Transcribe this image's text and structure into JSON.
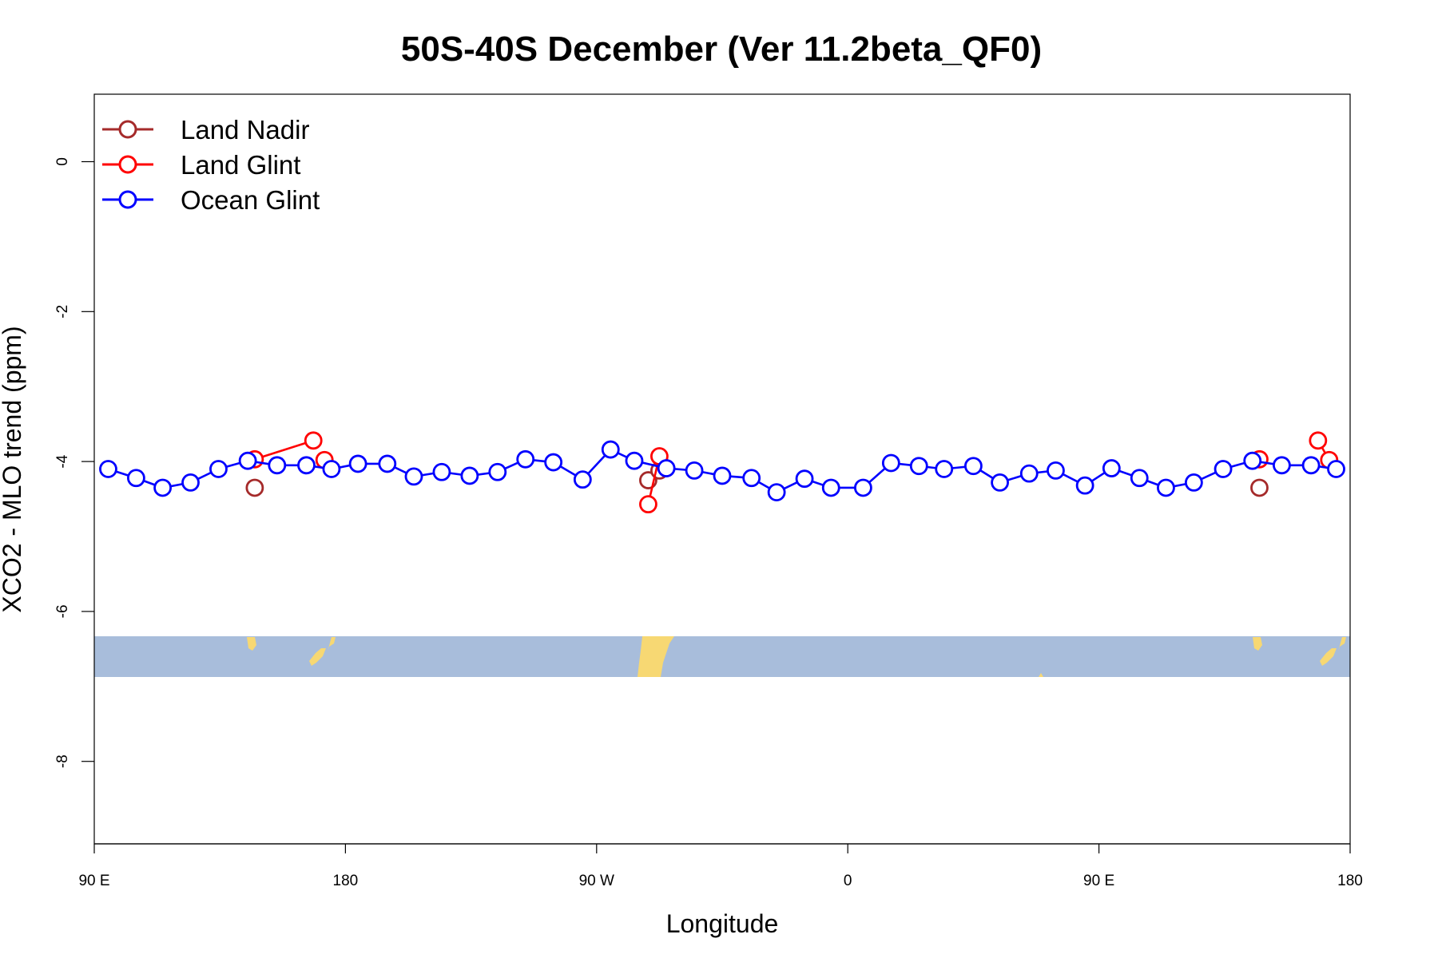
{
  "chart_data": {
    "type": "line",
    "title": "50S-40S December (Ver 11.2beta_QF0)",
    "xlabel": "Longitude",
    "ylabel": "XCO2 - MLO trend (ppm)",
    "x_axis": {
      "range": [
        0,
        450
      ],
      "ticks": [
        {
          "value": 0,
          "label": "90 E"
        },
        {
          "value": 90,
          "label": "180"
        },
        {
          "value": 180,
          "label": "90 W"
        },
        {
          "value": 270,
          "label": "0"
        },
        {
          "value": 360,
          "label": "90 E"
        },
        {
          "value": 450,
          "label": "180"
        }
      ]
    },
    "y_axis": {
      "range": [
        -9.1,
        0.9
      ],
      "ticks": [
        {
          "value": 0,
          "label": "0"
        },
        {
          "value": -2,
          "label": "-2"
        },
        {
          "value": -4,
          "label": "-4"
        },
        {
          "value": -6,
          "label": "-6"
        },
        {
          "value": -8,
          "label": "-8"
        }
      ]
    },
    "legend": {
      "placement": "top-left",
      "entries": [
        {
          "name": "Land Nadir",
          "color": "#a52a2a"
        },
        {
          "name": "Land Glint",
          "color": "#ff0000"
        },
        {
          "name": "Ocean Glint",
          "color": "#0000ff"
        }
      ]
    },
    "series": [
      {
        "name": "Land Nadir",
        "color": "#a52a2a",
        "segments": [
          [
            [
              57.5,
              -4.35
            ]
          ],
          [
            [
              198.5,
              -4.25
            ],
            [
              202.5,
              -4.12
            ]
          ],
          [
            [
              417.5,
              -4.35
            ]
          ]
        ]
      },
      {
        "name": "Land Glint",
        "color": "#ff0000",
        "segments": [
          [
            [
              57.5,
              -3.97
            ],
            [
              78.5,
              -3.72
            ]
          ],
          [
            [
              82.5,
              -3.98
            ]
          ],
          [
            [
              198.5,
              -4.57
            ],
            [
              202.5,
              -3.93
            ]
          ],
          [
            [
              417.5,
              -3.97
            ]
          ],
          [
            [
              438.5,
              -3.72
            ],
            [
              442.5,
              -3.98
            ]
          ]
        ]
      },
      {
        "name": "Ocean Glint",
        "color": "#0000ff",
        "segments": [
          [
            [
              5,
              -4.1
            ],
            [
              15,
              -4.22
            ],
            [
              24.5,
              -4.35
            ],
            [
              34.5,
              -4.28
            ],
            [
              44.5,
              -4.1
            ],
            [
              55,
              -3.99
            ],
            [
              65.5,
              -4.05
            ],
            [
              76,
              -4.05
            ],
            [
              85,
              -4.1
            ],
            [
              94.5,
              -4.03
            ],
            [
              105,
              -4.03
            ],
            [
              114.5,
              -4.2
            ],
            [
              124.5,
              -4.14
            ],
            [
              134.5,
              -4.19
            ],
            [
              144.5,
              -4.14
            ],
            [
              154.5,
              -3.97
            ],
            [
              164.5,
              -4.01
            ],
            [
              175,
              -4.24
            ],
            [
              185,
              -3.84
            ],
            [
              193.5,
              -3.99
            ],
            [
              205,
              -4.09
            ],
            [
              215,
              -4.12
            ],
            [
              225,
              -4.19
            ],
            [
              235.5,
              -4.22
            ],
            [
              244.5,
              -4.41
            ],
            [
              254.5,
              -4.23
            ],
            [
              264,
              -4.35
            ],
            [
              275.5,
              -4.35
            ],
            [
              285.5,
              -4.02
            ],
            [
              295.5,
              -4.06
            ],
            [
              304.5,
              -4.1
            ],
            [
              315,
              -4.06
            ],
            [
              324.5,
              -4.28
            ],
            [
              335,
              -4.16
            ],
            [
              344.5,
              -4.12
            ],
            [
              355,
              -4.32
            ],
            [
              364.5,
              -4.09
            ],
            [
              374.5,
              -4.22
            ],
            [
              384,
              -4.35
            ],
            [
              394,
              -4.28
            ],
            [
              404.5,
              -4.1
            ],
            [
              415,
              -3.99
            ],
            [
              425.5,
              -4.05
            ],
            [
              436,
              -4.05
            ],
            [
              445,
              -4.1
            ]
          ]
        ]
      }
    ]
  }
}
